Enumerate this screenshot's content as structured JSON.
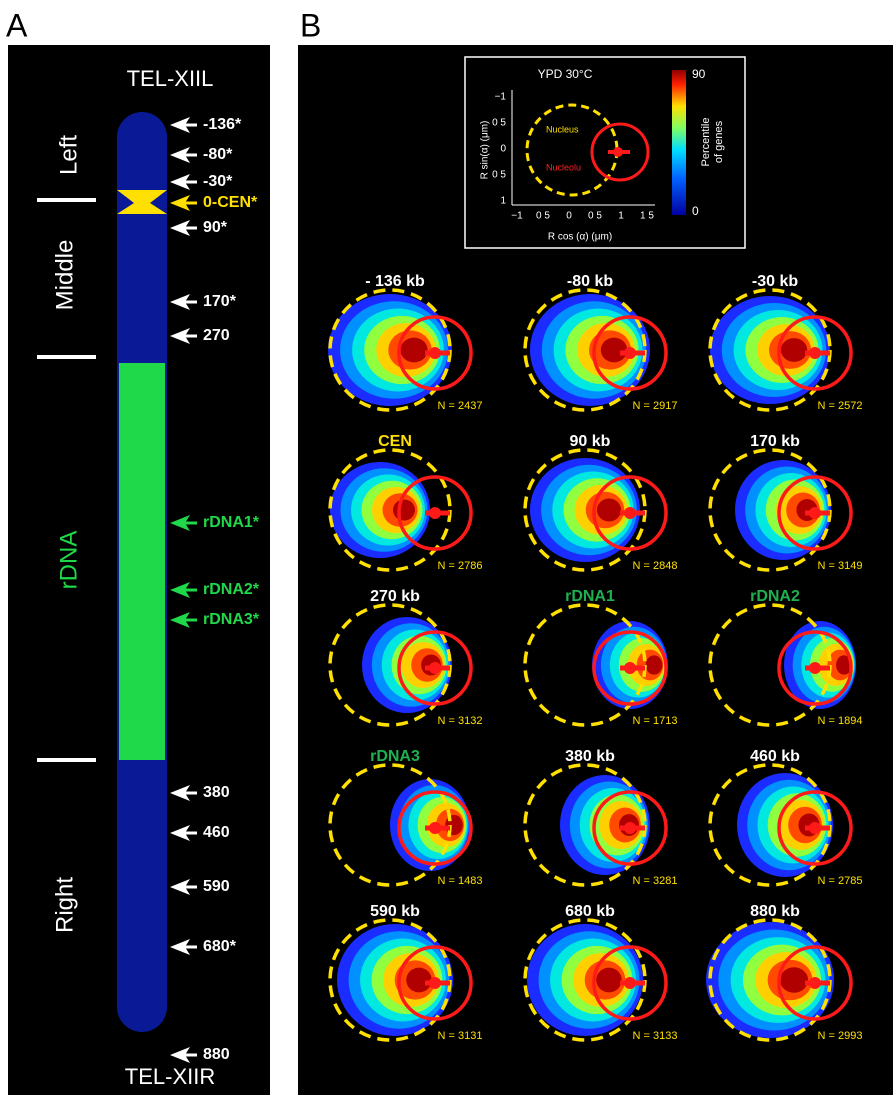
{
  "panel_a": {
    "label": "A",
    "top": "TEL-XIIL",
    "bottom": "TEL-XIIR",
    "regions": [
      "Left",
      "Middle",
      "rDNA",
      "Right"
    ],
    "markers": [
      "-136*",
      "-80*",
      "-30*",
      "0-CEN*",
      "90*",
      "170*",
      "270",
      "rDNA1*",
      "rDNA2*",
      "rDNA3*",
      "380",
      "460",
      "590",
      "680*",
      "880"
    ]
  },
  "panel_b": {
    "label": "B",
    "inset": {
      "condition": "YPD 30°C",
      "nucleus": "Nucleus",
      "nucleolus": "Nucleolu",
      "y_label": "R  sin(α) (μm)",
      "x_label": "R cos (α) (μm)",
      "y_ticks": [
        "−1",
        "0 5",
        "0",
        "0 5",
        "1"
      ],
      "x_ticks": [
        "−1",
        "0 5",
        "0",
        "0 5",
        "1",
        "1 5"
      ],
      "colorbar_label": [
        "Percentile",
        "of genes"
      ],
      "colorbar_max": "90",
      "colorbar_min": "0"
    },
    "plots": [
      {
        "title": "- 136 kb",
        "n": "N = 2437"
      },
      {
        "title": "-80 kb",
        "n": "N = 2917"
      },
      {
        "title": "-30 kb",
        "n": "N = 2572"
      },
      {
        "title": "CEN",
        "n": "N = 2786"
      },
      {
        "title": "90 kb",
        "n": "N = 2848"
      },
      {
        "title": "170 kb",
        "n": "N = 3149"
      },
      {
        "title": "270 kb",
        "n": "N = 3132"
      },
      {
        "title": "rDNA1",
        "n": "N = 1713"
      },
      {
        "title": "rDNA2",
        "n": "N = 1894"
      },
      {
        "title": "rDNA3",
        "n": "N = 1483"
      },
      {
        "title": "380 kb",
        "n": "N = 3281"
      },
      {
        "title": "460 kb",
        "n": "N = 2785"
      },
      {
        "title": "590 kb",
        "n": "N = 3131"
      },
      {
        "title": "680 kb",
        "n": "N = 3133"
      },
      {
        "title": "880 kb",
        "n": "N = 2993"
      }
    ]
  }
}
